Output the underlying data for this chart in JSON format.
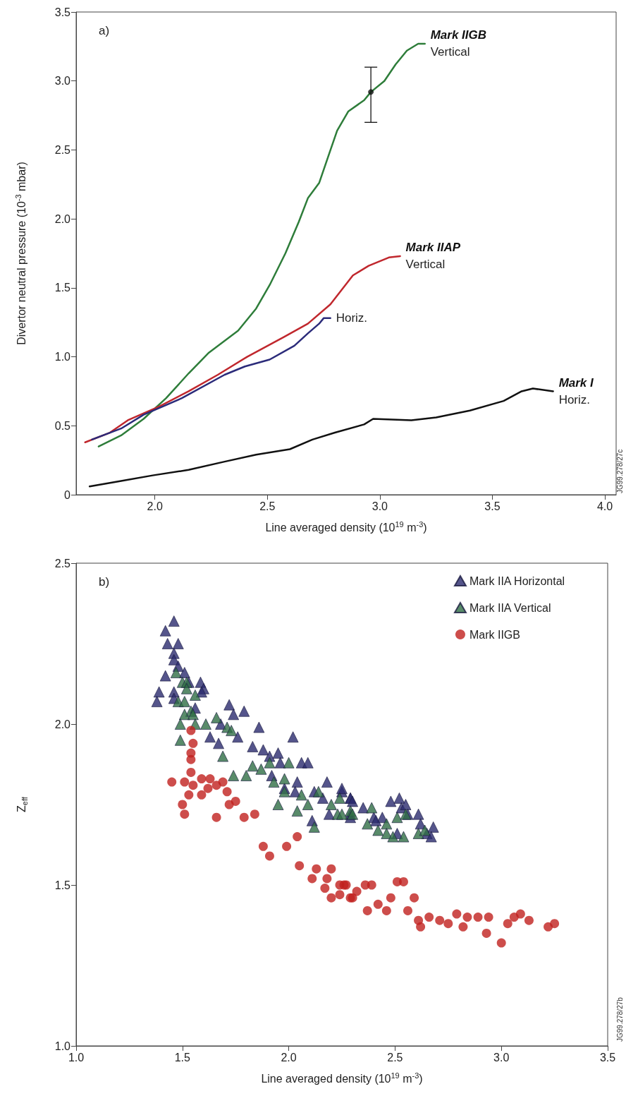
{
  "chart_data": [
    {
      "type": "line",
      "xlabel": "Line averaged density (10$^{19}$ m$^{-3}$)",
      "ylabel": "Divertor neutral pressure (10$^{-3}$ mbar)",
      "xlim": [
        1.65,
        4.05
      ],
      "ylim": [
        0,
        3.5
      ],
      "xticks": [
        {
          "value": 2,
          "label": "2.0"
        },
        2.5,
        {
          "value": 3,
          "label": "3.0"
        },
        3.5,
        {
          "value": 4,
          "label": "4.0"
        }
      ],
      "yticks": [
        0,
        0.5,
        {
          "value": 1,
          "label": "1.0"
        },
        1.5,
        {
          "value": 2,
          "label": "2.0"
        },
        2.5,
        {
          "value": 3,
          "label": "3.0"
        },
        3.5
      ],
      "marker": "none",
      "series": [
        {
          "name": "Mark IIGB\nVertical",
          "color": "#2e7d3a",
          "x": [
            1.75,
            1.85,
            1.95,
            2.05,
            2.15,
            2.24,
            2.37,
            2.45,
            2.51,
            2.58,
            2.64,
            2.68,
            2.73,
            2.77,
            2.81,
            2.86,
            2.93,
            2.96,
            3.02,
            3.07,
            3.12,
            3.17,
            3.2
          ],
          "values": [
            0.35,
            0.43,
            0.55,
            0.7,
            0.88,
            1.03,
            1.19,
            1.35,
            1.52,
            1.75,
            1.98,
            2.15,
            2.26,
            2.45,
            2.64,
            2.78,
            2.86,
            2.92,
            3.0,
            3.12,
            3.22,
            3.27,
            3.27
          ]
        },
        {
          "name": "Mark IIAP\nVertical",
          "color": "#c0272d",
          "x": [
            1.69,
            1.8,
            1.88,
            2.02,
            2.15,
            2.28,
            2.41,
            2.57,
            2.68,
            2.78,
            2.88,
            2.95,
            3.04,
            3.09
          ],
          "values": [
            0.38,
            0.45,
            0.54,
            0.64,
            0.75,
            0.87,
            1.0,
            1.14,
            1.24,
            1.38,
            1.59,
            1.66,
            1.72,
            1.73
          ]
        },
        {
          "name": "Horiz.",
          "color": "#2b2b7a",
          "x": [
            1.72,
            1.85,
            1.95,
            2.12,
            2.31,
            2.4,
            2.51,
            2.62,
            2.68,
            2.73,
            2.75,
            2.78
          ],
          "values": [
            0.4,
            0.48,
            0.58,
            0.7,
            0.87,
            0.93,
            0.98,
            1.08,
            1.17,
            1.24,
            1.28,
            1.28
          ]
        },
        {
          "name": "Mark I\nHoriz.",
          "color": "#111111",
          "x": [
            1.71,
            1.85,
            1.99,
            2.15,
            2.31,
            2.45,
            2.6,
            2.7,
            2.8,
            2.93,
            2.97,
            3.14,
            3.25,
            3.4,
            3.55,
            3.63,
            3.68,
            3.77
          ],
          "values": [
            0.06,
            0.1,
            0.14,
            0.18,
            0.24,
            0.29,
            0.33,
            0.4,
            0.45,
            0.51,
            0.55,
            0.54,
            0.56,
            0.61,
            0.68,
            0.75,
            0.77,
            0.75
          ]
        },
        {
          "type": "scatter",
          "marker": "circle",
          "color": "#111111",
          "x": [
            2.96
          ],
          "values": [
            2.92
          ],
          "errors": [
            [
              2.7,
              3.1
            ]
          ]
        }
      ],
      "annotations": [
        "a)",
        "JG99.278/27c"
      ]
    },
    {
      "type": "scatter",
      "xlabel": "Line averaged density (10$^{19}$ m$^{-3}$)",
      "ylabel": "Z$_{eff}$",
      "xlim": [
        1,
        3.5
      ],
      "ylim": [
        1,
        2.5
      ],
      "xticks": [
        {
          "value": 1,
          "label": "1.0"
        },
        1.5,
        {
          "value": 2,
          "label": "2.0"
        },
        2.5,
        {
          "value": 3,
          "label": "3.0"
        },
        3.5
      ],
      "yticks": [
        {
          "value": 1,
          "label": "1.0"
        },
        1.5,
        {
          "value": 2,
          "label": "2.0"
        },
        2.5
      ],
      "legend": "top right",
      "series": [
        {
          "name": "Mark IIA Horizontal",
          "color": "#2a2a6e",
          "marker": "triangle",
          "x": [
            1.46,
            1.42,
            1.43,
            1.48,
            1.46,
            1.46,
            1.48,
            1.42,
            1.39,
            1.38,
            1.46,
            1.46,
            1.51,
            1.53,
            1.585,
            1.6,
            1.59,
            1.56,
            1.72,
            1.74,
            1.79,
            1.68,
            1.86,
            1.63,
            1.67,
            1.76,
            2.02,
            1.83,
            1.88,
            1.91,
            1.95,
            1.96,
            2.06,
            2.09,
            1.92,
            2.04,
            1.98,
            2.03,
            2.11,
            2.18,
            2.19,
            2.25,
            2.29,
            2.29,
            2.12,
            2.16,
            2.25,
            2.29,
            2.3,
            2.35,
            2.29,
            2.4,
            2.44,
            2.48,
            2.52,
            2.53,
            2.55,
            2.56,
            2.61,
            2.62,
            2.68,
            2.65,
            2.67,
            2.51,
            2.41
          ],
          "values": [
            2.32,
            2.29,
            2.25,
            2.25,
            2.22,
            2.2,
            2.18,
            2.15,
            2.1,
            2.07,
            2.1,
            2.08,
            2.16,
            2.13,
            2.13,
            2.11,
            2.1,
            2.05,
            2.06,
            2.03,
            2.04,
            2.0,
            1.99,
            1.96,
            1.94,
            1.96,
            1.96,
            1.93,
            1.92,
            1.9,
            1.91,
            1.88,
            1.88,
            1.88,
            1.84,
            1.82,
            1.8,
            1.79,
            1.7,
            1.82,
            1.72,
            1.79,
            1.77,
            1.72,
            1.79,
            1.77,
            1.8,
            1.77,
            1.76,
            1.74,
            1.71,
            1.71,
            1.71,
            1.76,
            1.77,
            1.74,
            1.75,
            1.72,
            1.72,
            1.69,
            1.68,
            1.66,
            1.65,
            1.66,
            1.7
          ]
        },
        {
          "name": "Mark IIA Vertical",
          "color": "#2f6e45",
          "marker": "triangle",
          "x": [
            1.47,
            1.5,
            1.52,
            1.52,
            1.56,
            1.48,
            1.51,
            1.54,
            1.51,
            1.55,
            1.49,
            1.56,
            1.61,
            1.66,
            1.71,
            1.73,
            1.49,
            1.69,
            1.74,
            1.8,
            1.83,
            1.87,
            1.91,
            1.93,
            1.98,
            2.0,
            1.95,
            1.98,
            2.04,
            2.06,
            2.09,
            2.12,
            2.14,
            2.2,
            2.23,
            2.24,
            2.29,
            2.25,
            2.3,
            2.39,
            2.37,
            2.42,
            2.46,
            2.46,
            2.49,
            2.54,
            2.51,
            2.55,
            2.61,
            2.64
          ],
          "values": [
            2.16,
            2.13,
            2.13,
            2.11,
            2.09,
            2.07,
            2.07,
            2.04,
            2.03,
            2.03,
            2.0,
            2.0,
            2.0,
            2.02,
            1.99,
            1.98,
            1.95,
            1.9,
            1.84,
            1.84,
            1.87,
            1.86,
            1.88,
            1.82,
            1.83,
            1.88,
            1.75,
            1.79,
            1.73,
            1.78,
            1.75,
            1.68,
            1.79,
            1.75,
            1.72,
            1.77,
            1.73,
            1.72,
            1.72,
            1.74,
            1.69,
            1.67,
            1.69,
            1.66,
            1.65,
            1.65,
            1.71,
            1.72,
            1.66,
            1.67
          ]
        },
        {
          "name": "Mark IIGB",
          "color": "#c0201e",
          "marker": "circle",
          "x": [
            1.54,
            1.55,
            1.54,
            1.54,
            1.54,
            1.45,
            1.51,
            1.55,
            1.59,
            1.63,
            1.69,
            1.66,
            1.62,
            1.59,
            1.53,
            1.71,
            1.75,
            1.72,
            1.5,
            1.51,
            1.66,
            1.79,
            1.84,
            1.88,
            1.91,
            1.99,
            2.04,
            2.05,
            2.13,
            2.2,
            2.11,
            2.18,
            2.17,
            2.24,
            2.27,
            2.32,
            2.2,
            2.24,
            2.3,
            2.26,
            2.36,
            2.39,
            2.51,
            2.54,
            2.59,
            2.37,
            2.42,
            2.46,
            2.48,
            2.29,
            2.56,
            2.61,
            2.66,
            2.71,
            2.75,
            2.79,
            2.84,
            2.89,
            2.94,
            3.03,
            3.06,
            3.09,
            3.13,
            3.22,
            3.25,
            3.0,
            2.93,
            2.82,
            2.62
          ],
          "values": [
            1.98,
            1.94,
            1.91,
            1.89,
            1.85,
            1.82,
            1.82,
            1.81,
            1.83,
            1.83,
            1.82,
            1.81,
            1.8,
            1.78,
            1.78,
            1.79,
            1.76,
            1.75,
            1.75,
            1.72,
            1.71,
            1.71,
            1.72,
            1.62,
            1.59,
            1.62,
            1.65,
            1.56,
            1.55,
            1.55,
            1.52,
            1.52,
            1.49,
            1.5,
            1.5,
            1.48,
            1.46,
            1.47,
            1.46,
            1.5,
            1.5,
            1.5,
            1.51,
            1.51,
            1.46,
            1.42,
            1.44,
            1.42,
            1.46,
            1.46,
            1.42,
            1.39,
            1.4,
            1.39,
            1.38,
            1.41,
            1.4,
            1.4,
            1.4,
            1.38,
            1.4,
            1.41,
            1.39,
            1.37,
            1.38,
            1.32,
            1.35,
            1.37,
            1.37
          ]
        }
      ],
      "annotations": [
        "b)",
        "JG99.278/27b"
      ]
    }
  ]
}
